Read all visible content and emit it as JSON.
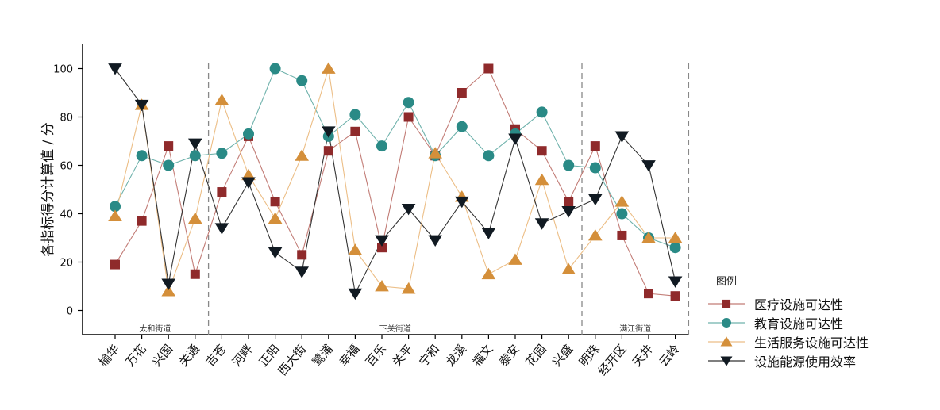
{
  "chart_data": {
    "type": "line",
    "ylabel": "各指标得分计算值 / 分",
    "ylim": [
      -10,
      110
    ],
    "yticks": [
      0,
      20,
      40,
      60,
      80,
      100
    ],
    "categories": [
      "榆华",
      "万花",
      "兴国",
      "关通",
      "吉苍",
      "河畔",
      "正阳",
      "西大街",
      "鹭浦",
      "幸福",
      "百乐",
      "关平",
      "宁和",
      "龙溪",
      "福文",
      "泰安",
      "花园",
      "兴盛",
      "明珠",
      "经开区",
      "天井",
      "云岭"
    ],
    "groups": [
      {
        "name": "太和街道",
        "start": 0,
        "end": 3
      },
      {
        "name": "下关街道",
        "start": 4,
        "end": 17
      },
      {
        "name": "满江街道",
        "start": 18,
        "end": 21
      }
    ],
    "legend_title": "图例",
    "series": [
      {
        "name": "医疗设施可达性",
        "marker": "square",
        "color": "#8f2a2b",
        "line_color": "#c27c76",
        "values": [
          19,
          37,
          68,
          15,
          49,
          72,
          45,
          23,
          66,
          74,
          26,
          80,
          64,
          90,
          100,
          75,
          66,
          45,
          68,
          31,
          7,
          6
        ]
      },
      {
        "name": "教育设施可达性",
        "marker": "circle",
        "color": "#2a8a86",
        "line_color": "#6fb2ac",
        "values": [
          43,
          64,
          60,
          64,
          65,
          73,
          100,
          95,
          72,
          81,
          68,
          86,
          64,
          76,
          64,
          73,
          82,
          60,
          59,
          40,
          30,
          26
        ]
      },
      {
        "name": "生活服务设施可达性",
        "marker": "triangle",
        "color": "#d48f3a",
        "line_color": "#ecbe86",
        "values": [
          39,
          85,
          8,
          38,
          87,
          56,
          38,
          64,
          100,
          25,
          10,
          9,
          65,
          47,
          15,
          21,
          54,
          17,
          31,
          45,
          30,
          30
        ]
      },
      {
        "name": "设施能源使用效率",
        "marker": "triangle-down",
        "color": "#111a22",
        "line_color": "#333333",
        "values": [
          100,
          85,
          11,
          69,
          34,
          53,
          24,
          16,
          74,
          7,
          29,
          42,
          29,
          45,
          32,
          71,
          36,
          41,
          46,
          72,
          60,
          12
        ]
      }
    ],
    "grid": false
  }
}
